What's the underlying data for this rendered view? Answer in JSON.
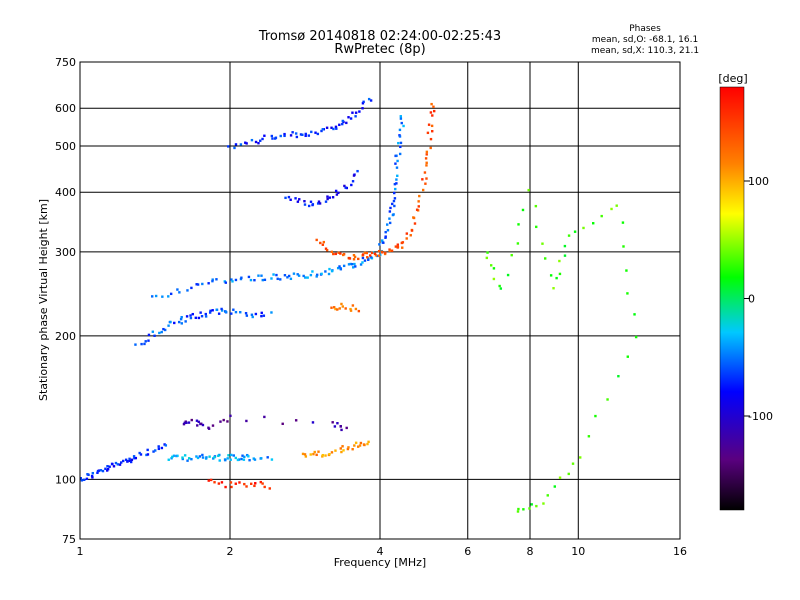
{
  "chart_data": {
    "type": "scatter",
    "title": "Tromsø 20140818 02:24:00-02:25:43",
    "subtitle": "RwPretec (8p)",
    "xlabel": "Frequency [MHz]",
    "ylabel": "Stationary phase Virtual Height [km]",
    "x_scale": "log",
    "y_scale": "log",
    "xlim": [
      1,
      16
    ],
    "ylim": [
      75,
      750
    ],
    "x_ticks": [
      1,
      2,
      4,
      6,
      8,
      10,
      16
    ],
    "y_ticks": [
      75,
      100,
      200,
      300,
      400,
      500,
      600,
      750
    ],
    "grid": true,
    "legend": {
      "title": "Phases",
      "lines": [
        "mean, sd,O: -68.1, 16.1",
        "mean, sd,X: 110.3, 21.1"
      ],
      "placement": "top-right"
    },
    "colorbar": {
      "label": "[deg]",
      "ticks": [
        100,
        0,
        -100
      ],
      "range": [
        -180,
        180
      ]
    },
    "series": [
      {
        "description_color_phase": -70,
        "points": [
          [
            1.0,
            100
          ],
          [
            1.05,
            102
          ],
          [
            1.1,
            104
          ],
          [
            1.15,
            106
          ],
          [
            1.2,
            108
          ],
          [
            1.25,
            110
          ],
          [
            1.3,
            112
          ],
          [
            1.4,
            115
          ],
          [
            1.5,
            118
          ]
        ]
      },
      {
        "description_color_phase": -40,
        "points": [
          [
            1.5,
            110
          ],
          [
            1.6,
            111
          ],
          [
            1.7,
            111
          ],
          [
            1.8,
            111
          ],
          [
            1.9,
            111
          ],
          [
            2.0,
            111
          ],
          [
            2.1,
            111
          ],
          [
            2.2,
            111
          ],
          [
            2.4,
            111
          ]
        ]
      },
      {
        "description_color_phase": -60,
        "points": [
          [
            1.3,
            190
          ],
          [
            1.4,
            200
          ],
          [
            1.5,
            210
          ],
          [
            1.6,
            215
          ],
          [
            1.7,
            220
          ],
          [
            1.8,
            222
          ],
          [
            1.9,
            225
          ],
          [
            2.0,
            225
          ],
          [
            2.2,
            222
          ],
          [
            2.4,
            222
          ]
        ]
      },
      {
        "description_color_phase": -50,
        "points": [
          [
            1.4,
            240
          ],
          [
            1.6,
            250
          ],
          [
            1.8,
            258
          ],
          [
            2.0,
            262
          ],
          [
            2.2,
            264
          ],
          [
            2.4,
            265
          ],
          [
            2.6,
            266
          ],
          [
            2.8,
            268
          ],
          [
            3.0,
            270
          ],
          [
            3.2,
            274
          ],
          [
            3.4,
            278
          ],
          [
            3.6,
            283
          ],
          [
            3.8,
            290
          ],
          [
            4.0,
            300
          ],
          [
            4.1,
            320
          ],
          [
            4.2,
            350
          ],
          [
            4.25,
            380
          ],
          [
            4.3,
            420
          ],
          [
            4.35,
            470
          ],
          [
            4.4,
            520
          ],
          [
            4.45,
            580
          ]
        ]
      },
      {
        "description_color_phase": -80,
        "points": [
          [
            2.6,
            390
          ],
          [
            2.8,
            380
          ],
          [
            3.0,
            378
          ],
          [
            3.2,
            390
          ],
          [
            3.4,
            410
          ],
          [
            3.6,
            440
          ]
        ]
      },
      {
        "description_color_phase": -70,
        "points": [
          [
            2.0,
            500
          ],
          [
            2.2,
            510
          ],
          [
            2.4,
            520
          ],
          [
            2.6,
            525
          ],
          [
            2.8,
            530
          ],
          [
            3.0,
            535
          ],
          [
            3.2,
            545
          ],
          [
            3.4,
            560
          ],
          [
            3.6,
            590
          ],
          [
            3.8,
            630
          ]
        ]
      },
      {
        "description_color_phase": 140,
        "points": [
          [
            3.0,
            320
          ],
          [
            3.2,
            300
          ],
          [
            3.4,
            295
          ],
          [
            3.6,
            293
          ],
          [
            3.8,
            295
          ],
          [
            4.0,
            297
          ],
          [
            4.2,
            300
          ],
          [
            4.4,
            310
          ],
          [
            4.6,
            330
          ],
          [
            4.8,
            370
          ],
          [
            4.9,
            420
          ],
          [
            5.0,
            480
          ],
          [
            5.05,
            550
          ],
          [
            5.1,
            620
          ]
        ]
      },
      {
        "description_color_phase": 110,
        "points": [
          [
            2.8,
            112
          ],
          [
            3.0,
            113
          ],
          [
            3.2,
            114
          ],
          [
            3.4,
            116
          ],
          [
            3.6,
            118
          ],
          [
            3.8,
            120
          ]
        ]
      },
      {
        "description_color_phase": 120,
        "points": [
          [
            3.2,
            230
          ],
          [
            3.4,
            230
          ],
          [
            3.6,
            228
          ]
        ]
      },
      {
        "description_color_phase": 160,
        "points": [
          [
            1.8,
            100
          ],
          [
            2.0,
            97
          ],
          [
            2.2,
            98
          ],
          [
            2.4,
            97
          ]
        ]
      },
      {
        "description_color_phase": -120,
        "points": [
          [
            1.6,
            130
          ],
          [
            1.7,
            132
          ],
          [
            1.8,
            128
          ],
          [
            2.0,
            135
          ],
          [
            3.2,
            130
          ],
          [
            3.4,
            128
          ]
        ]
      },
      {
        "description_color_phase": 30,
        "points": [
          [
            6.5,
            300
          ],
          [
            7.0,
            250
          ],
          [
            8.0,
            400
          ],
          [
            9.0,
            250
          ],
          [
            9.5,
            320
          ],
          [
            12.0,
            380
          ],
          [
            13.0,
            200
          ],
          [
            10.0,
            110
          ],
          [
            8.5,
            90
          ],
          [
            7.5,
            85
          ]
        ]
      }
    ]
  }
}
